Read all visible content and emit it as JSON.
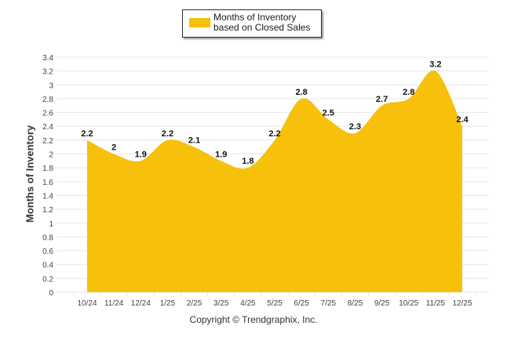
{
  "chart_data": {
    "type": "area",
    "title": "",
    "legend": {
      "entries": [
        "Months of Inventory based on Closed Sales"
      ],
      "placement": "top-center"
    },
    "xlabel": "",
    "ylabel": "Months of Inventory",
    "categories": [
      "10/24",
      "11/24",
      "12/24",
      "1/25",
      "2/25",
      "3/25",
      "4/25",
      "5/25",
      "6/25",
      "7/25",
      "8/25",
      "9/25",
      "10/25",
      "11/25",
      "12/25"
    ],
    "series": [
      {
        "name": "Months of Inventory based on Closed Sales",
        "values": [
          2.2,
          2,
          1.9,
          2.2,
          2.1,
          1.9,
          1.8,
          2.2,
          2.8,
          2.5,
          2.3,
          2.7,
          2.8,
          3.2,
          2.4
        ],
        "labels": [
          "2.2",
          "2",
          "1.9",
          "2.2",
          "2.1",
          "1.9",
          "1.8",
          "2.2",
          "2.8",
          "2.5",
          "2.3",
          "2.7",
          "2.8",
          "3.2",
          "2.4"
        ],
        "color": "#f7c00b"
      }
    ],
    "ylim": [
      0,
      3.4
    ],
    "yticks": [
      "0",
      "0.2",
      "0.4",
      "0.6",
      "0.8",
      "1",
      "1.2",
      "1.4",
      "1.6",
      "1.8",
      "2",
      "2.2",
      "2.4",
      "2.6",
      "2.8",
      "3",
      "3.2",
      "3.4"
    ],
    "grid": true
  },
  "footer": {
    "copyright": "Copyright © Trendgraphix, Inc."
  },
  "colors": {
    "area": "#f7c00b",
    "grid": "#e6e6e6",
    "axis_text": "#444444"
  }
}
